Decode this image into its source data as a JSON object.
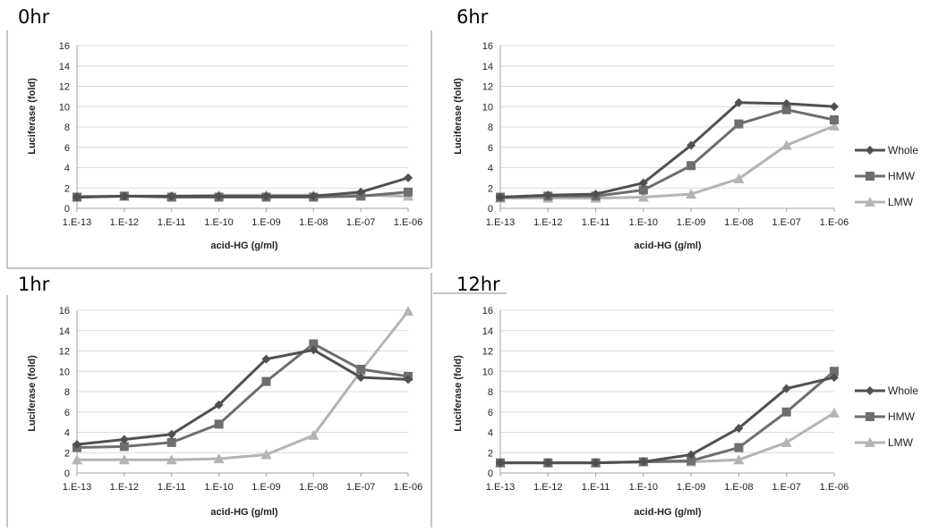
{
  "chart_data": [
    {
      "type": "line",
      "title": "0hr",
      "xlabel": "acid-HG (g/ml)",
      "ylabel": "Luciferase (fold)",
      "ylim": [
        0,
        16
      ],
      "yticks": [
        "0",
        "2",
        "4",
        "6",
        "8",
        "10",
        "12",
        "14",
        "16"
      ],
      "categories": [
        "1.E-13",
        "1.E-12",
        "1.E-11",
        "1.E-10",
        "1.E-09",
        "1.E-08",
        "1.E-07",
        "1.E-06"
      ],
      "grid": true,
      "series": [
        {
          "name": "Whole",
          "values": [
            1.1,
            1.2,
            1.2,
            1.2,
            1.2,
            1.2,
            1.6,
            3.0
          ]
        },
        {
          "name": "HMW",
          "values": [
            1.1,
            1.2,
            1.1,
            1.1,
            1.1,
            1.1,
            1.2,
            1.6
          ]
        },
        {
          "name": "LMW",
          "values": [
            1.2,
            1.2,
            1.2,
            1.3,
            1.3,
            1.3,
            1.3,
            1.2
          ]
        }
      ]
    },
    {
      "type": "line",
      "title": "6hr",
      "xlabel": "acid-HG (g/ml)",
      "ylabel": "Luciferase (fold)",
      "ylim": [
        0,
        16
      ],
      "yticks": [
        "0",
        "2",
        "4",
        "6",
        "8",
        "10",
        "12",
        "14",
        "16"
      ],
      "categories": [
        "1.E-13",
        "1.E-12",
        "1.E-11",
        "1.E-10",
        "1.E-09",
        "1.E-08",
        "1.E-07",
        "1.E-06"
      ],
      "grid": true,
      "legend": "right",
      "series": [
        {
          "name": "Whole",
          "values": [
            1.1,
            1.3,
            1.4,
            2.5,
            6.2,
            10.4,
            10.3,
            10.0
          ]
        },
        {
          "name": "HMW",
          "values": [
            1.1,
            1.2,
            1.2,
            1.8,
            4.2,
            8.3,
            9.7,
            8.7
          ]
        },
        {
          "name": "LMW",
          "values": [
            1.0,
            1.0,
            1.0,
            1.1,
            1.4,
            2.9,
            6.2,
            8.1
          ]
        }
      ]
    },
    {
      "type": "line",
      "title": "1hr",
      "xlabel": "acid-HG (g/ml)",
      "ylabel": "Luciferase (fold)",
      "ylim": [
        0,
        16
      ],
      "yticks": [
        "0",
        "2",
        "4",
        "6",
        "8",
        "10",
        "12",
        "14",
        "16"
      ],
      "categories": [
        "1.E-13",
        "1.E-12",
        "1.E-11",
        "1.E-10",
        "1.E-09",
        "1.E-08",
        "1.E-07",
        "1.E-06"
      ],
      "grid": true,
      "series": [
        {
          "name": "Whole",
          "values": [
            2.8,
            3.3,
            3.8,
            6.7,
            11.2,
            12.1,
            9.4,
            9.2
          ]
        },
        {
          "name": "HMW",
          "values": [
            2.5,
            2.6,
            3.0,
            4.8,
            9.0,
            12.7,
            10.2,
            9.5
          ]
        },
        {
          "name": "LMW",
          "values": [
            1.3,
            1.3,
            1.3,
            1.4,
            1.8,
            3.7,
            10.0,
            15.9
          ]
        }
      ]
    },
    {
      "type": "line",
      "title": "12hr",
      "xlabel": "acid-HG (g/ml)",
      "ylabel": "Luciferase (fold)",
      "ylim": [
        0,
        16
      ],
      "yticks": [
        "0",
        "2",
        "4",
        "6",
        "8",
        "10",
        "12",
        "14",
        "16"
      ],
      "categories": [
        "1.E-13",
        "1.E-12",
        "1.E-11",
        "1.E-10",
        "1.E-09",
        "1.E-08",
        "1.E-07",
        "1.E-06"
      ],
      "grid": true,
      "legend": "right",
      "series": [
        {
          "name": "Whole",
          "values": [
            1.0,
            1.0,
            1.0,
            1.1,
            1.8,
            4.4,
            8.3,
            9.4
          ]
        },
        {
          "name": "HMW",
          "values": [
            1.0,
            1.0,
            1.0,
            1.1,
            1.2,
            2.5,
            6.0,
            10.0
          ]
        },
        {
          "name": "LMW",
          "values": [
            1.0,
            1.0,
            1.0,
            1.1,
            1.1,
            1.3,
            3.0,
            5.9
          ]
        }
      ]
    }
  ],
  "styles": {
    "Whole": {
      "color": "#505050",
      "marker": "diamond"
    },
    "HMW": {
      "color": "#6e6e6e",
      "marker": "square"
    },
    "LMW": {
      "color": "#b4b4b4",
      "marker": "triangle"
    },
    "grid_color": "#dcdcdc",
    "axis_color": "#a0a0a0",
    "separator_color": "#8c8c8c"
  }
}
